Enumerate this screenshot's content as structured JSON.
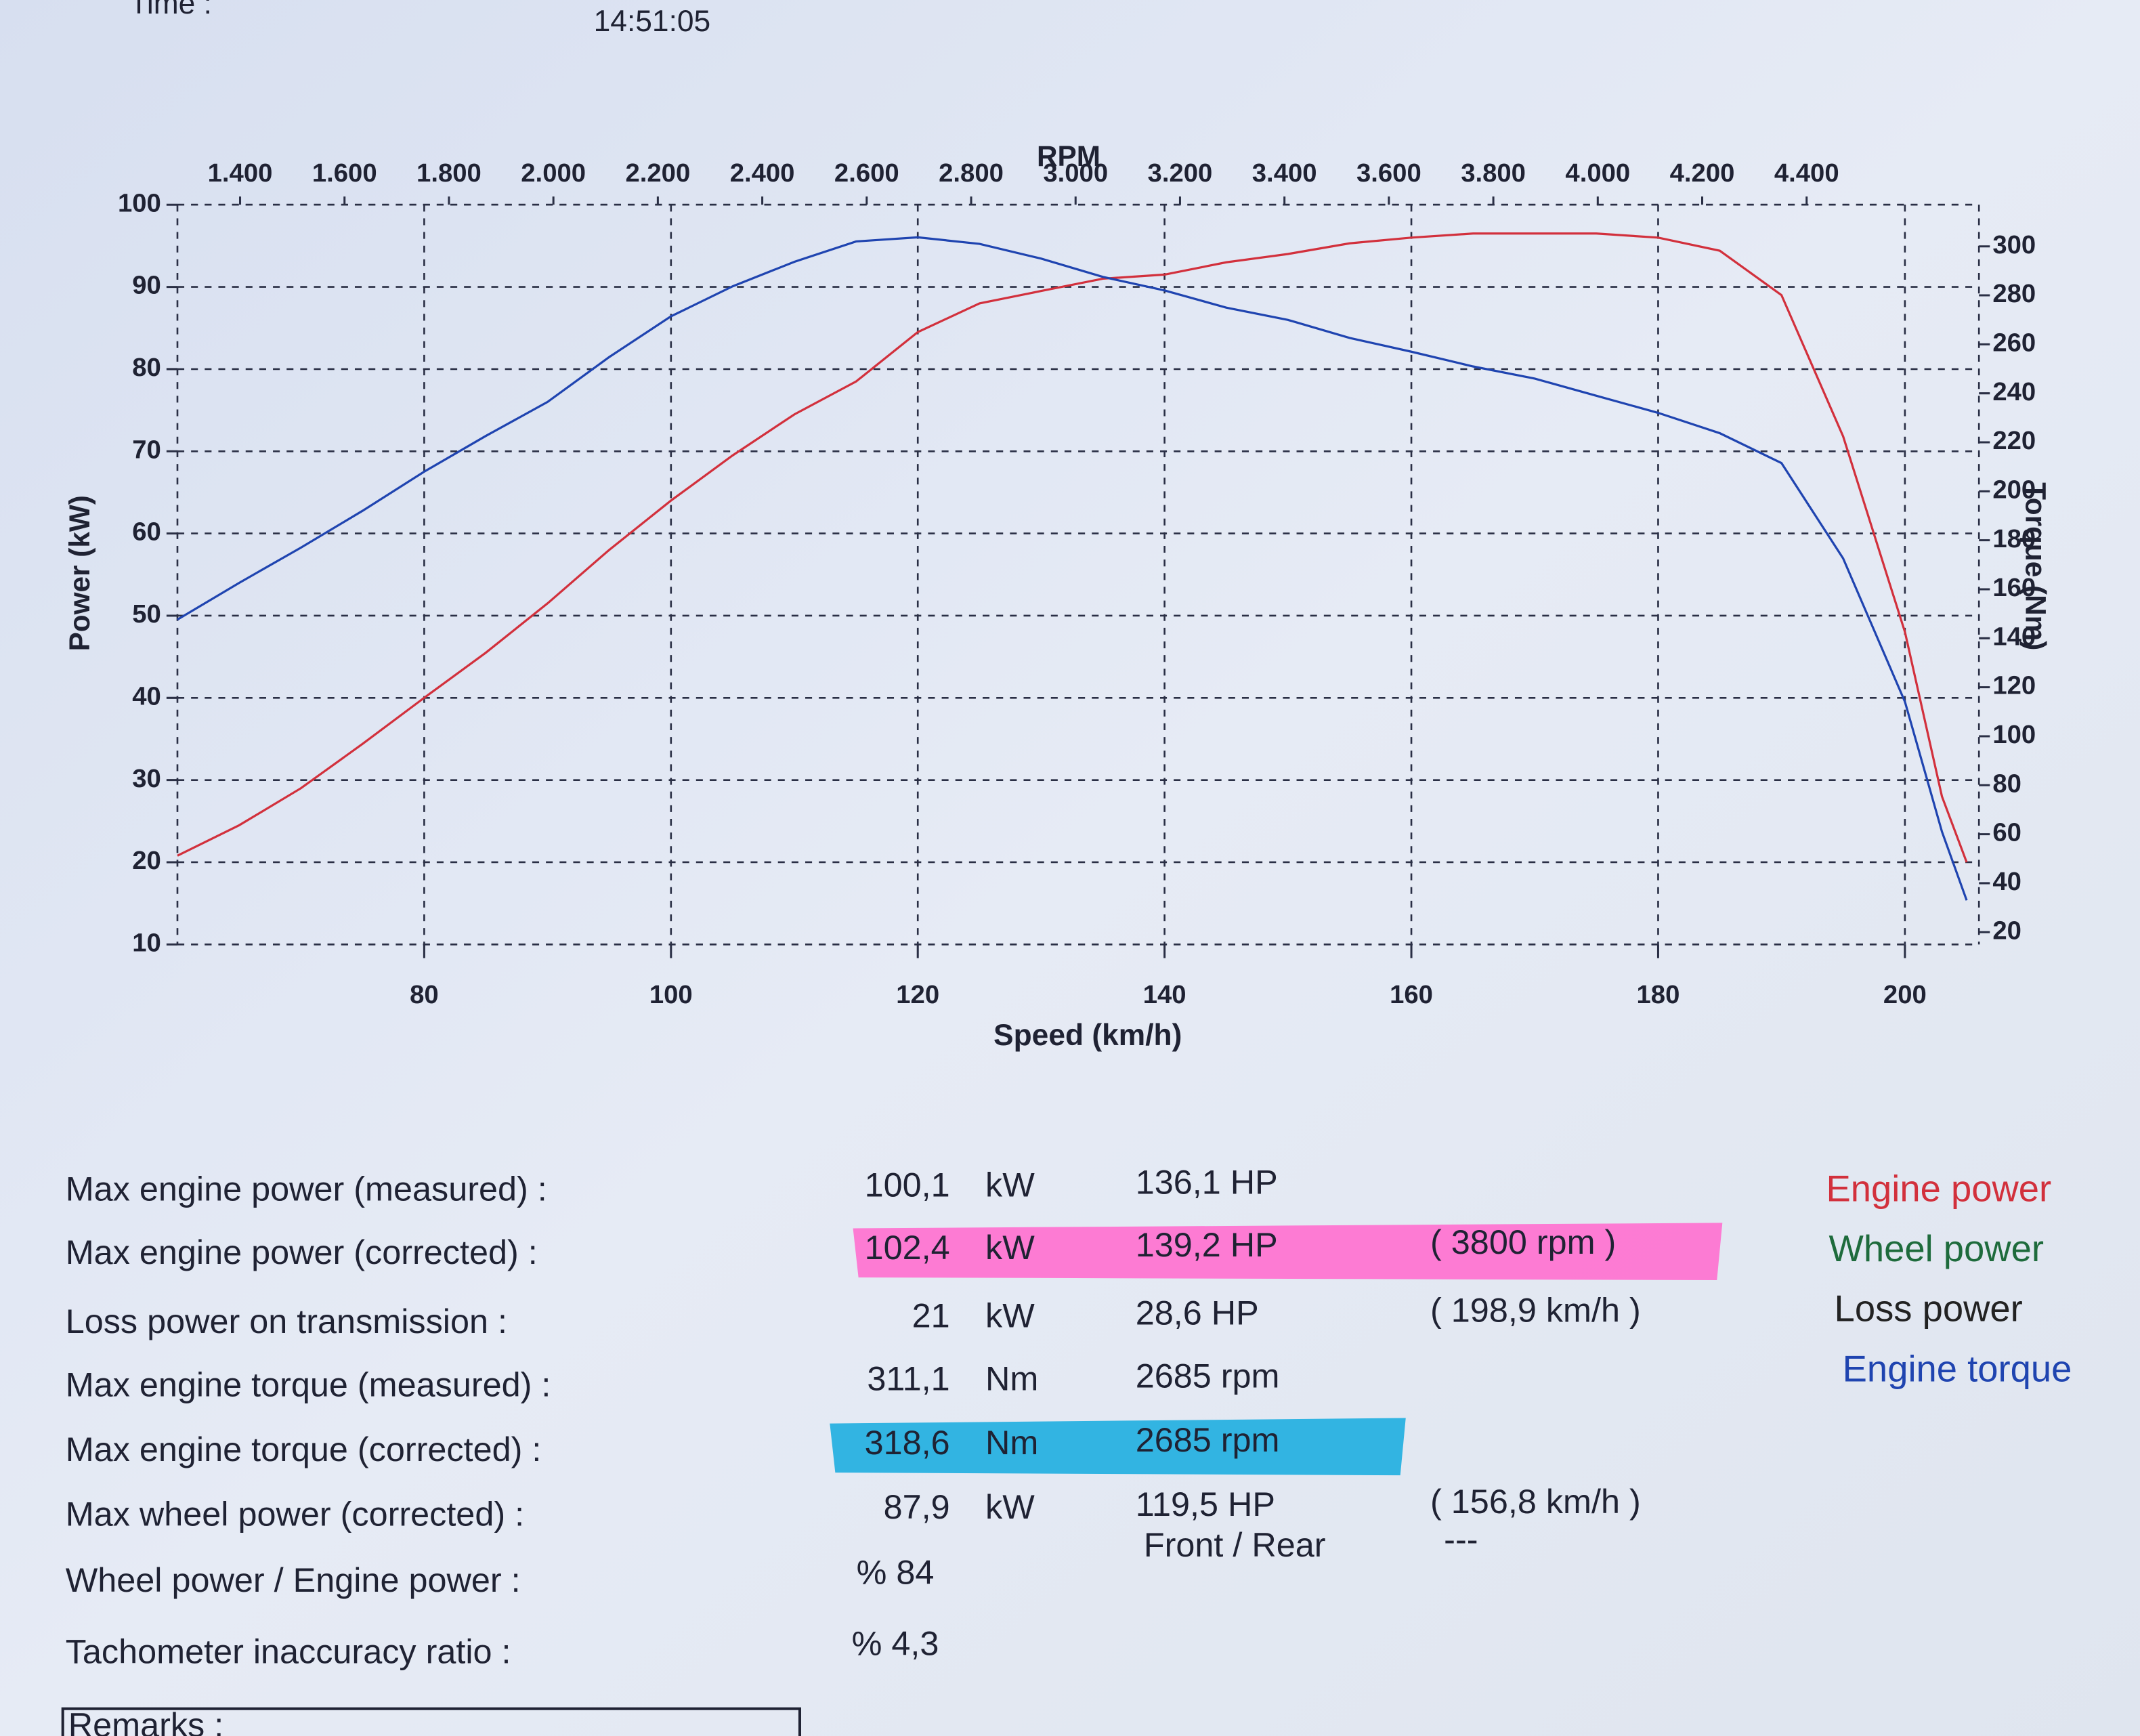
{
  "header": {
    "time_label": "Time :",
    "time": "14:51:05"
  },
  "chart_data": {
    "type": "line",
    "xlabel": "Speed (km/h)",
    "ylabel": "Power (kW)",
    "y2label": "Torque (Nm)",
    "x2label": "RPM",
    "x": [
      60,
      65,
      70,
      75,
      80,
      85,
      90,
      95,
      100,
      105,
      110,
      115,
      120,
      125,
      130,
      135,
      140,
      145,
      150,
      155,
      160,
      165,
      170,
      175,
      180,
      185,
      190,
      195,
      200,
      203,
      205
    ],
    "series": [
      {
        "name": "Engine power",
        "color": "#d2303c",
        "axis": "y",
        "values": [
          20.8,
          24.5,
          29,
          34.4,
          40,
          45.5,
          51.5,
          58,
          64,
          69.5,
          74.5,
          78.5,
          84.5,
          88,
          89.5,
          91,
          91.5,
          93,
          94,
          95.3,
          96,
          96.5,
          96.5,
          96.5,
          96,
          94.4,
          89,
          71.8,
          48,
          28,
          20
        ]
      },
      {
        "name": "Engine torque",
        "color": "#1f44b0",
        "axis": "y2",
        "values": [
          147.6,
          162.6,
          177,
          192,
          208,
          222.6,
          236.5,
          254.8,
          271.4,
          283.7,
          293.7,
          302,
          303.7,
          301,
          295,
          287.5,
          282,
          275,
          270,
          262.6,
          257,
          251,
          246,
          239,
          232,
          223.7,
          211.5,
          172.6,
          114,
          61,
          33
        ]
      }
    ],
    "other_legend": [
      {
        "name": "Wheel power",
        "color": "#1e6b3c"
      },
      {
        "name": "Loss power",
        "color": "#222222"
      }
    ],
    "xlim": [
      60,
      206
    ],
    "xticks": [
      80,
      100,
      120,
      140,
      160,
      180,
      200
    ],
    "ylim": [
      10,
      100
    ],
    "yticks": [
      10,
      20,
      30,
      40,
      50,
      60,
      70,
      80,
      90,
      100
    ],
    "y2lim": [
      15,
      317
    ],
    "y2ticks": [
      20,
      40,
      60,
      80,
      100,
      120,
      140,
      160,
      180,
      200,
      220,
      240,
      260,
      280,
      300
    ],
    "x2lim": [
      1280,
      4730
    ],
    "x2ticks": [
      {
        "value": 1400,
        "label": "1.400"
      },
      {
        "value": 1600,
        "label": "1.600"
      },
      {
        "value": 1800,
        "label": "1.800"
      },
      {
        "value": 2000,
        "label": "2.000"
      },
      {
        "value": 2200,
        "label": "2.200"
      },
      {
        "value": 2400,
        "label": "2.400"
      },
      {
        "value": 2600,
        "label": "2.600"
      },
      {
        "value": 2800,
        "label": "2.800"
      },
      {
        "value": 3000,
        "label": "3.000"
      },
      {
        "value": 3200,
        "label": "3.200"
      },
      {
        "value": 3400,
        "label": "3.400"
      },
      {
        "value": 3600,
        "label": "3.600"
      },
      {
        "value": 3800,
        "label": "3.800"
      },
      {
        "value": 4000,
        "label": "4.000"
      },
      {
        "value": 4200,
        "label": "4.200"
      },
      {
        "value": 4400,
        "label": "4.400"
      }
    ],
    "grid": true
  },
  "results": {
    "rows": [
      {
        "label": "Max engine power (measured) :",
        "value": "100,1",
        "unit": "kW",
        "secondary": "136,1 HP"
      },
      {
        "label": "Max engine power (corrected) :",
        "value": "102,4",
        "unit": "kW",
        "secondary": "139,2 HP",
        "note": "( 3800 rpm )",
        "highlight": "#ff6fcf"
      },
      {
        "label": "Loss power on transmission :",
        "value": "21",
        "unit": "kW",
        "secondary": "28,6 HP",
        "note": "( 198,9 km/h )"
      },
      {
        "label": "Max engine torque (measured) :",
        "value": "311,1",
        "unit": "Nm",
        "secondary": "2685 rpm"
      },
      {
        "label": "Max engine torque (corrected) :",
        "value": "318,6",
        "unit": "Nm",
        "secondary": "2685 rpm",
        "highlight": "#1eaee0"
      },
      {
        "label": "Max wheel power (corrected) :",
        "value": "87,9",
        "unit": "kW",
        "secondary": "119,5 HP",
        "note": "( 156,8 km/h )"
      },
      {
        "label": "Wheel power / Engine power :",
        "value": "% 84",
        "secondary": "Front / Rear",
        "note": "---"
      },
      {
        "label": "Tachometer inaccuracy ratio :",
        "value": "% 4,3"
      }
    ],
    "remarks": "Remarks :"
  }
}
